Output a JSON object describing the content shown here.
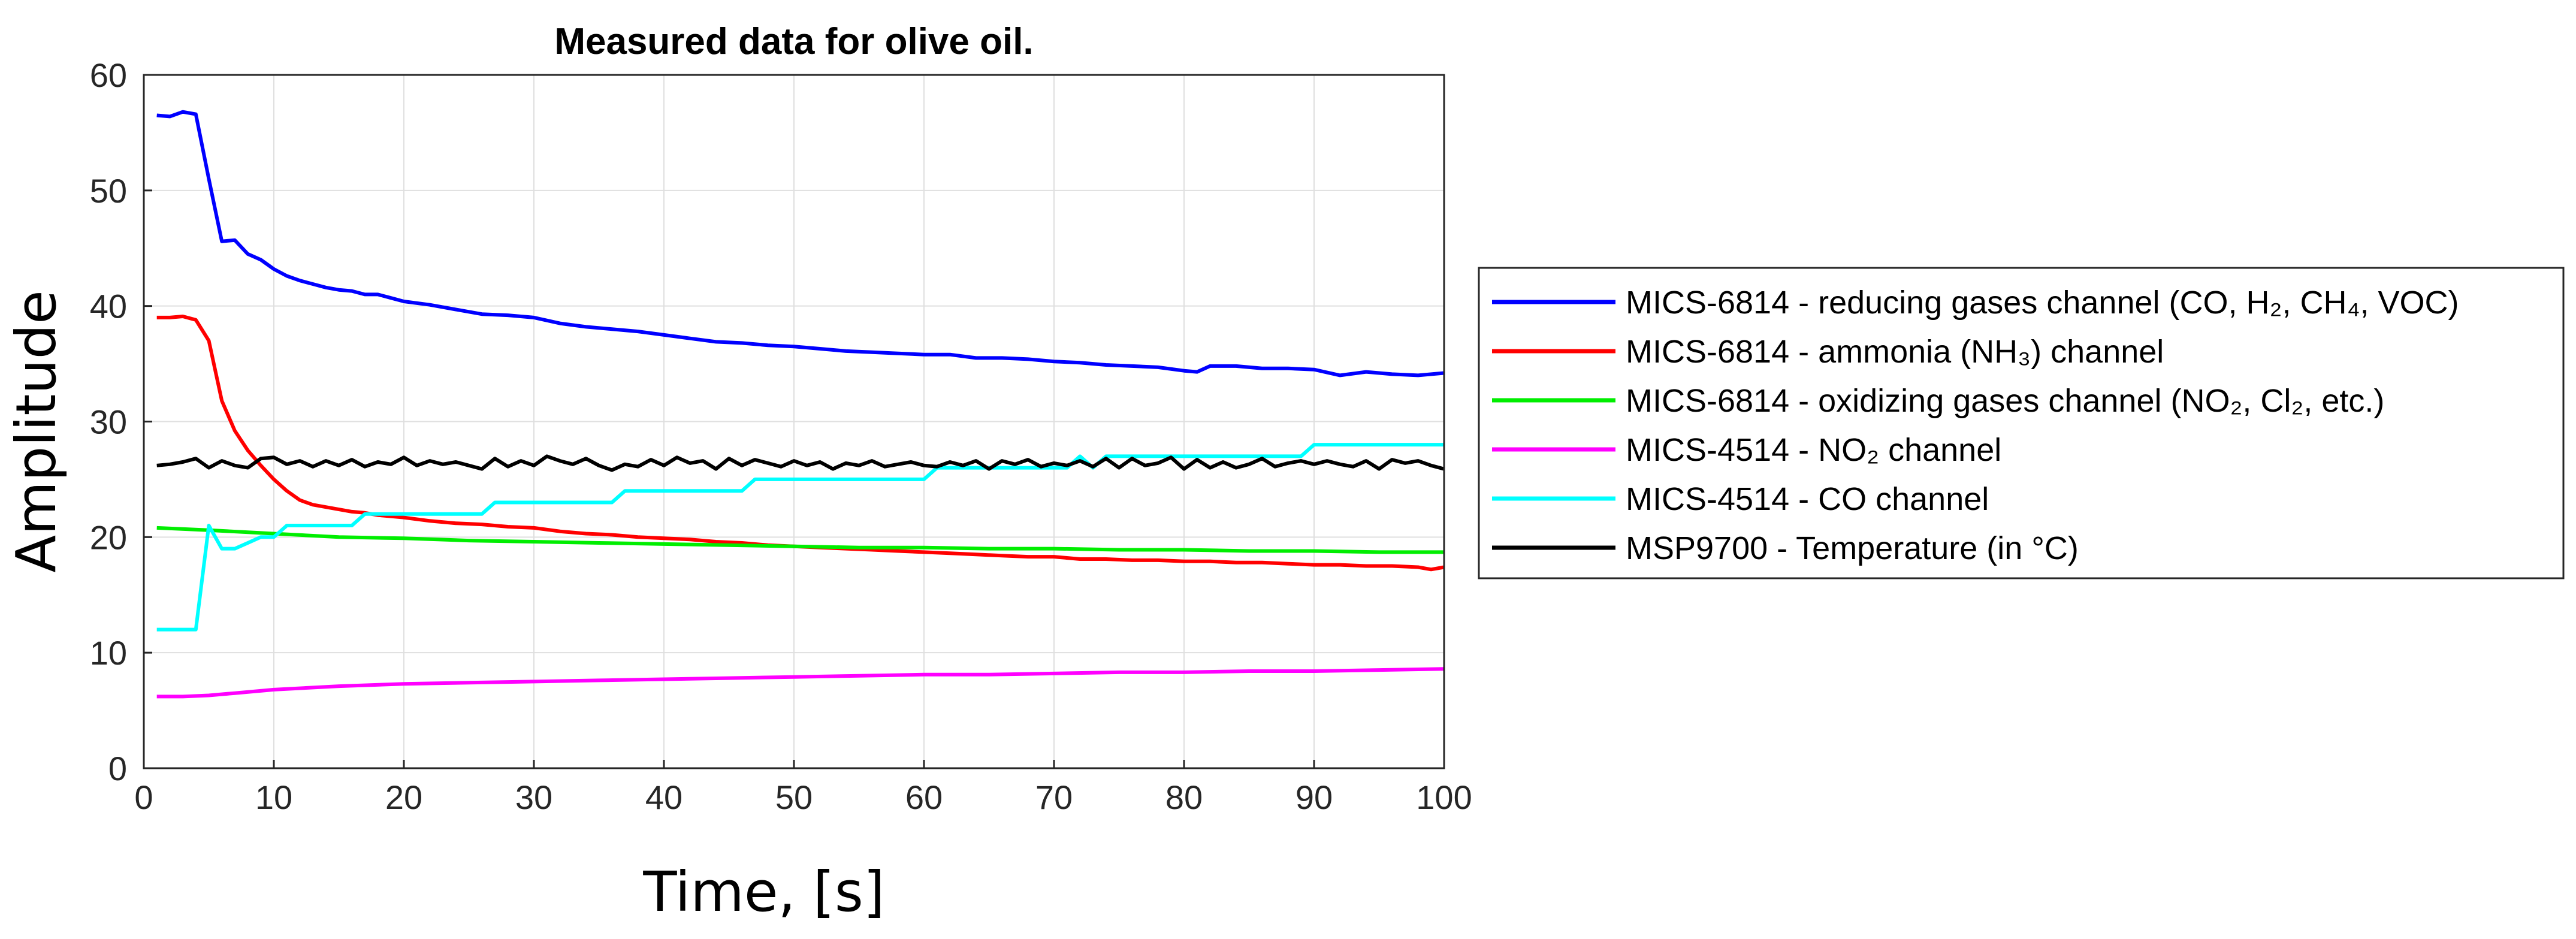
{
  "chart_data": {
    "type": "line",
    "title": "Measured data for olive oil.",
    "xlabel": "Time, [s]",
    "ylabel": "Amplitude",
    "xlim": [
      0,
      100
    ],
    "ylim": [
      0,
      60
    ],
    "xticks": [
      0,
      10,
      20,
      30,
      40,
      50,
      60,
      70,
      80,
      90,
      100
    ],
    "yticks": [
      0,
      10,
      20,
      30,
      40,
      50,
      60
    ],
    "grid": true,
    "legend_position": "outside-right",
    "series": [
      {
        "name": "MICS-6814 -  reducing gases channel (CO, H₂, CH₄, VOC)",
        "color": "#0000ff",
        "x": [
          1,
          2,
          3,
          4,
          5,
          6,
          7,
          8,
          9,
          10,
          11,
          12,
          13,
          14,
          15,
          16,
          17,
          18,
          19,
          20,
          22,
          24,
          26,
          28,
          30,
          32,
          34,
          36,
          38,
          40,
          42,
          44,
          46,
          48,
          50,
          52,
          54,
          56,
          58,
          60,
          62,
          64,
          66,
          68,
          70,
          72,
          74,
          76,
          78,
          80,
          81,
          82,
          84,
          86,
          88,
          90,
          92,
          94,
          96,
          98,
          100
        ],
        "y": [
          56.5,
          56.4,
          56.8,
          56.6,
          51,
          45.6,
          45.7,
          44.5,
          44,
          43.2,
          42.6,
          42.2,
          41.9,
          41.6,
          41.4,
          41.3,
          41,
          41,
          40.7,
          40.4,
          40.1,
          39.7,
          39.3,
          39.2,
          39,
          38.5,
          38.2,
          38,
          37.8,
          37.5,
          37.2,
          36.9,
          36.8,
          36.6,
          36.5,
          36.3,
          36.1,
          36,
          35.9,
          35.8,
          35.8,
          35.5,
          35.5,
          35.4,
          35.2,
          35.1,
          34.9,
          34.8,
          34.7,
          34.4,
          34.3,
          34.8,
          34.8,
          34.6,
          34.6,
          34.5,
          34,
          34.3,
          34.1,
          34,
          34.2
        ]
      },
      {
        "name": "MICS-6814 -  ammonia (NH₃) channel",
        "color": "#ff0000",
        "x": [
          1,
          2,
          3,
          4,
          5,
          6,
          7,
          8,
          9,
          10,
          11,
          12,
          13,
          14,
          15,
          16,
          17,
          18,
          19,
          20,
          22,
          24,
          26,
          28,
          30,
          32,
          34,
          36,
          38,
          40,
          42,
          44,
          46,
          48,
          50,
          52,
          54,
          56,
          58,
          60,
          62,
          64,
          66,
          68,
          70,
          72,
          74,
          76,
          78,
          80,
          82,
          84,
          86,
          88,
          90,
          92,
          94,
          96,
          98,
          99,
          100
        ],
        "y": [
          39,
          39,
          39.1,
          38.8,
          37,
          31.8,
          29.2,
          27.5,
          26.2,
          25,
          24,
          23.2,
          22.8,
          22.6,
          22.4,
          22.2,
          22.1,
          21.9,
          21.8,
          21.7,
          21.4,
          21.2,
          21.1,
          20.9,
          20.8,
          20.5,
          20.3,
          20.2,
          20,
          19.9,
          19.8,
          19.6,
          19.5,
          19.3,
          19.2,
          19.1,
          19,
          18.9,
          18.8,
          18.7,
          18.6,
          18.5,
          18.4,
          18.3,
          18.3,
          18.1,
          18.1,
          18,
          18,
          17.9,
          17.9,
          17.8,
          17.8,
          17.7,
          17.6,
          17.6,
          17.5,
          17.5,
          17.4,
          17.2,
          17.4
        ]
      },
      {
        "name": "MICS-6814 -  oxidizing gases channel (NO₂, Cl₂, etc.)",
        "color": "#00ee00",
        "x": [
          1,
          5,
          10,
          15,
          20,
          25,
          30,
          35,
          40,
          45,
          50,
          55,
          60,
          65,
          70,
          75,
          80,
          85,
          90,
          95,
          100
        ],
        "y": [
          20.8,
          20.6,
          20.3,
          20,
          19.9,
          19.7,
          19.6,
          19.5,
          19.4,
          19.3,
          19.2,
          19.1,
          19.1,
          19,
          19,
          18.9,
          18.9,
          18.8,
          18.8,
          18.7,
          18.7
        ]
      },
      {
        "name": "MICS-4514 -  NO₂ channel",
        "color": "#ff00ff",
        "x": [
          1,
          3,
          5,
          7,
          10,
          15,
          20,
          25,
          30,
          35,
          40,
          45,
          50,
          55,
          60,
          65,
          70,
          75,
          80,
          85,
          90,
          95,
          100
        ],
        "y": [
          6.2,
          6.2,
          6.3,
          6.5,
          6.8,
          7.1,
          7.3,
          7.4,
          7.5,
          7.6,
          7.7,
          7.8,
          7.9,
          8,
          8.1,
          8.1,
          8.2,
          8.3,
          8.3,
          8.4,
          8.4,
          8.5,
          8.6
        ]
      },
      {
        "name": "MICS-4514 -  CO channel",
        "color": "#00ffff",
        "x": [
          1,
          4,
          5,
          6,
          7,
          8,
          9,
          10,
          11,
          16,
          17,
          26,
          27,
          36,
          37,
          46,
          47,
          60,
          61,
          71,
          72,
          73,
          74,
          89,
          90,
          100
        ],
        "y": [
          12,
          12,
          21,
          19,
          19,
          19.5,
          20,
          20,
          21,
          21,
          22,
          22,
          23,
          23,
          24,
          24,
          25,
          25,
          26,
          26,
          27,
          26,
          27,
          27,
          28,
          28
        ]
      },
      {
        "name": "MSP9700 -  Temperature (in °C)",
        "color": "#000000",
        "x": [
          1,
          2,
          3,
          4,
          5,
          6,
          7,
          8,
          9,
          10,
          11,
          12,
          13,
          14,
          15,
          16,
          17,
          18,
          19,
          20,
          21,
          22,
          23,
          24,
          25,
          26,
          27,
          28,
          29,
          30,
          31,
          32,
          33,
          34,
          35,
          36,
          37,
          38,
          39,
          40,
          41,
          42,
          43,
          44,
          45,
          46,
          47,
          48,
          49,
          50,
          51,
          52,
          53,
          54,
          55,
          56,
          57,
          58,
          59,
          60,
          61,
          62,
          63,
          64,
          65,
          66,
          67,
          68,
          69,
          70,
          71,
          72,
          73,
          74,
          75,
          76,
          77,
          78,
          79,
          80,
          81,
          82,
          83,
          84,
          85,
          86,
          87,
          88,
          89,
          90,
          91,
          92,
          93,
          94,
          95,
          96,
          97,
          98,
          99,
          100
        ],
        "y": [
          26.2,
          26.3,
          26.5,
          26.8,
          26,
          26.6,
          26.2,
          26,
          26.8,
          26.9,
          26.3,
          26.6,
          26.1,
          26.6,
          26.2,
          26.7,
          26.1,
          26.5,
          26.3,
          26.9,
          26.2,
          26.6,
          26.3,
          26.5,
          26.2,
          25.9,
          26.8,
          26.1,
          26.6,
          26.2,
          27,
          26.6,
          26.3,
          26.8,
          26.2,
          25.8,
          26.3,
          26.1,
          26.7,
          26.2,
          26.9,
          26.4,
          26.6,
          25.9,
          26.8,
          26.2,
          26.7,
          26.4,
          26.1,
          26.6,
          26.2,
          26.5,
          25.9,
          26.4,
          26.2,
          26.6,
          26.1,
          26.3,
          26.5,
          26.2,
          26.1,
          26.5,
          26.2,
          26.6,
          25.9,
          26.6,
          26.3,
          26.7,
          26.1,
          26.4,
          26.2,
          26.6,
          26.1,
          26.8,
          26,
          26.8,
          26.2,
          26.4,
          26.9,
          25.9,
          26.7,
          26,
          26.5,
          26,
          26.3,
          26.8,
          26.1,
          26.4,
          26.6,
          26.3,
          26.6,
          26.3,
          26.1,
          26.6,
          25.9,
          26.7,
          26.4,
          26.6,
          26.2,
          25.9
        ]
      }
    ]
  }
}
